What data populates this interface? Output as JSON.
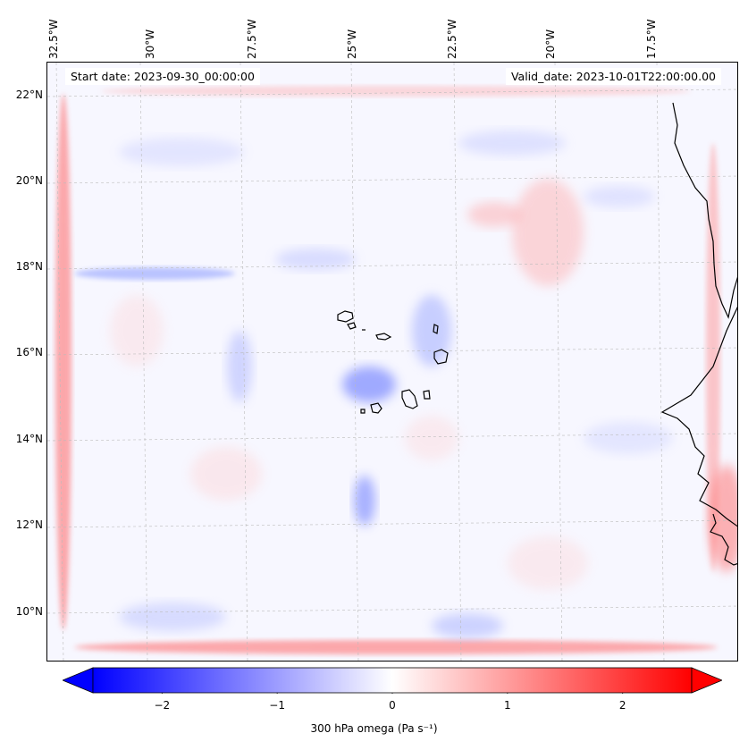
{
  "map": {
    "start_date": "Start date: 2023-09-30_00:00:00",
    "valid_date": "Valid_date: 2023-10-01T22:00:00.00",
    "lon_labels": [
      "32.5°W",
      "30°W",
      "27.5°W",
      "25°W",
      "22.5°W",
      "20°W",
      "17.5°W"
    ],
    "lat_labels": [
      "22°N",
      "20°N",
      "18°N",
      "16°N",
      "14°N",
      "12°N",
      "10°N"
    ],
    "gridlines": true,
    "features": [
      "coastline-west-africa",
      "cape-verde-islands"
    ]
  },
  "colorbar": {
    "label": "300 hPa omega (Pa s⁻¹)",
    "ticks": [
      "−2",
      "−1",
      "0",
      "1",
      "2"
    ],
    "tick_values": [
      -2,
      -1,
      0,
      1,
      2
    ],
    "range": [
      -2.6,
      2.6
    ],
    "cmap": "bwr",
    "extend": "both",
    "colors": {
      "min": "#0000ff",
      "mid": "#ffffff",
      "max": "#ff0000"
    }
  }
}
